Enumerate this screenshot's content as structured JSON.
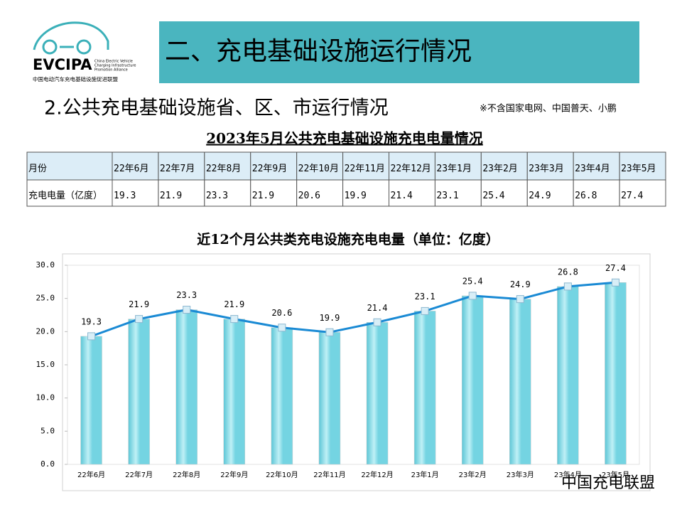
{
  "logo": {
    "name": "EVCIPA",
    "english": [
      "China Electric Vehicle",
      "Charging Infrastructure",
      "Promotion Alliance"
    ],
    "chinese": "中国电动汽车充电基础设施促进联盟"
  },
  "header": {
    "title": "二、充电基础设施运行情况",
    "subtitle": "2.公共充电基础设施省、区、市运行情况",
    "note": "※不含国家电网、中国普天、小鹏"
  },
  "table": {
    "title": "2023年5月公共充电基础设施充电电量情况",
    "header": [
      "月份",
      "22年6月",
      "22年7月",
      "22年8月",
      "22年9月",
      "22年10月",
      "22年11月",
      "22年12月",
      "23年1月",
      "23年2月",
      "23年3月",
      "23年4月",
      "23年5月"
    ],
    "rows": [
      [
        "充电电量（亿度）",
        "19.3",
        "21.9",
        "23.3",
        "21.9",
        "20.6",
        "19.9",
        "21.4",
        "23.1",
        "25.4",
        "24.9",
        "26.8",
        "27.4"
      ]
    ]
  },
  "chart_data": {
    "type": "bar-line",
    "title": "近12个月公共类充电设施充电电量（单位：亿度）",
    "categories": [
      "22年6月",
      "22年7月",
      "22年8月",
      "22年9月",
      "22年10月",
      "22年11月",
      "22年12月",
      "23年1月",
      "23年2月",
      "23年3月",
      "23年4月",
      "23年5月"
    ],
    "series": [
      {
        "type": "bar",
        "color": "#74d4e2",
        "values": [
          19.3,
          21.9,
          23.3,
          21.9,
          20.6,
          19.9,
          21.4,
          23.1,
          25.4,
          24.9,
          26.8,
          27.4
        ]
      },
      {
        "type": "line",
        "color": "#1a8ad4",
        "values": [
          19.3,
          21.9,
          23.3,
          21.9,
          20.6,
          19.9,
          21.4,
          23.1,
          25.4,
          24.9,
          26.8,
          27.4
        ]
      }
    ],
    "ylim": [
      0,
      30
    ],
    "yticks": [
      {
        "value": 0,
        "label": "0.0"
      },
      {
        "value": 5,
        "label": "5.0"
      },
      {
        "value": 10,
        "label": "10.0"
      },
      {
        "value": 15,
        "label": "15.0"
      },
      {
        "value": 20,
        "label": "20.0"
      },
      {
        "value": 25,
        "label": "25.0"
      },
      {
        "value": 30,
        "label": "30.0"
      }
    ],
    "grid": false
  },
  "watermark": "中国充电联盟"
}
